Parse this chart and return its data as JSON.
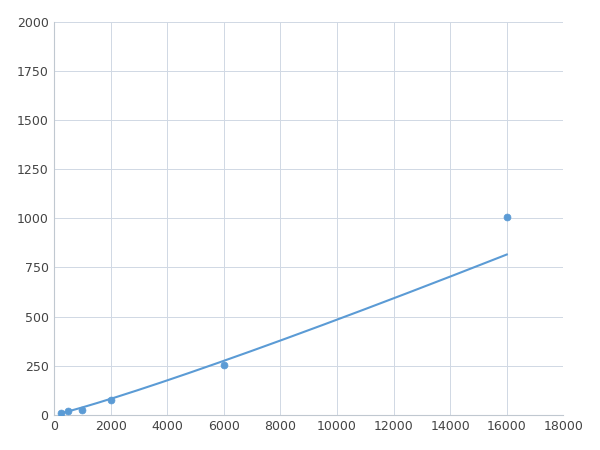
{
  "x": [
    250,
    500,
    1000,
    2000,
    6000,
    16000
  ],
  "y": [
    10,
    20,
    25,
    75,
    255,
    1005
  ],
  "line_color": "#5b9bd5",
  "marker_color": "#5b9bd5",
  "marker_size": 5,
  "marker_style": "o",
  "line_width": 1.5,
  "xlim": [
    0,
    18000
  ],
  "ylim": [
    0,
    2000
  ],
  "xticks": [
    0,
    2000,
    4000,
    6000,
    8000,
    10000,
    12000,
    14000,
    16000,
    18000
  ],
  "yticks": [
    0,
    250,
    500,
    750,
    1000,
    1250,
    1500,
    1750,
    2000
  ],
  "grid_color": "#d0d8e4",
  "grid_linewidth": 0.7,
  "background_color": "#ffffff",
  "tick_fontsize": 9,
  "fig_width": 6.0,
  "fig_height": 4.5,
  "dpi": 100,
  "spine_color": "#c0c8d0"
}
